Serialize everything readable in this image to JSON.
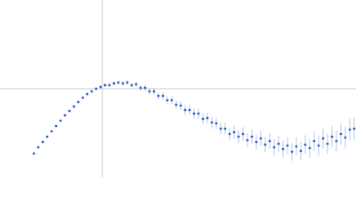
{
  "chart_data": {
    "type": "scatter",
    "color": "#3563c0",
    "error_color": "#8aa6dc",
    "xlim": [
      0,
      400
    ],
    "ylim": [
      0,
      200
    ],
    "reference_lines": {
      "x": 115,
      "y": 100,
      "color": "#cccccc"
    },
    "x": [
      38,
      43,
      48,
      53,
      58,
      63,
      68,
      73,
      78,
      83,
      88,
      93,
      98,
      103,
      108,
      113,
      118,
      123,
      128,
      133,
      138,
      143,
      148,
      153,
      158,
      163,
      168,
      173,
      178,
      183,
      188,
      193,
      198,
      203,
      208,
      213,
      218,
      223,
      228,
      233,
      238,
      243,
      248,
      253,
      258,
      263,
      268,
      273,
      278,
      283,
      288,
      293,
      298,
      303,
      308,
      313,
      318,
      323,
      328,
      333,
      338,
      343,
      348,
      353,
      358,
      363,
      368,
      373,
      378,
      383,
      388,
      393,
      398
    ],
    "values": [
      27,
      34,
      40,
      46,
      52,
      58,
      64,
      70,
      75,
      80,
      85,
      90,
      94,
      97,
      100,
      102,
      104,
      104,
      106,
      107,
      106,
      107,
      104,
      105,
      101,
      101,
      97,
      97,
      92,
      92,
      87,
      87,
      82,
      81,
      76,
      76,
      72,
      72,
      66,
      67,
      62,
      61,
      55,
      55,
      49,
      51,
      46,
      49,
      42,
      46,
      40,
      44,
      37,
      41,
      34,
      38,
      32,
      36,
      29,
      35,
      30,
      37,
      33,
      41,
      36,
      44,
      38,
      46,
      41,
      49,
      45,
      54,
      55
    ],
    "errors": [
      0.5,
      0.6,
      0.7,
      0.8,
      0.9,
      1,
      1,
      1.1,
      1.2,
      1.3,
      1.4,
      1.5,
      1.6,
      1.7,
      1.8,
      1.9,
      2,
      2.1,
      2.2,
      2.3,
      2.5,
      2.6,
      2.8,
      3,
      3.2,
      3.4,
      3.6,
      3.8,
      4,
      4.2,
      4.4,
      4.6,
      4.8,
      5,
      5.2,
      5.4,
      5.6,
      5.8,
      6,
      6.2,
      6.4,
      6.6,
      6.8,
      7,
      7.2,
      7.4,
      7.6,
      7.8,
      8,
      8.2,
      8.4,
      8.6,
      8.8,
      9,
      9.2,
      9.4,
      9.6,
      9.8,
      10,
      10.2,
      10.4,
      10.6,
      10.8,
      11,
      11.2,
      11.4,
      11.6,
      11.8,
      12,
      12.2,
      12.4,
      12.6,
      12.8
    ]
  }
}
